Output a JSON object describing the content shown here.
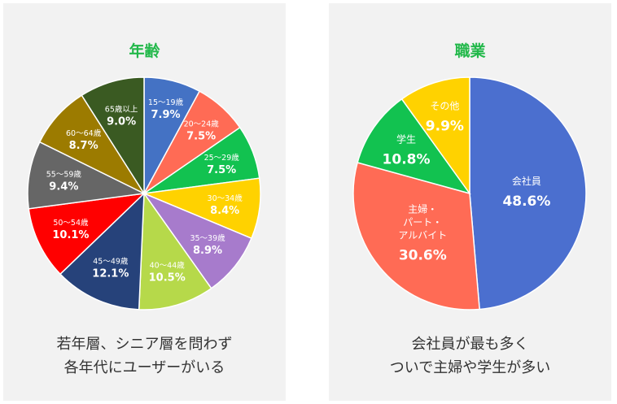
{
  "chart_data": [
    {
      "type": "pie",
      "title": "年齢",
      "categories": [
        "15～19歳",
        "20～24歳",
        "25～29歳",
        "30～34歳",
        "35～39歳",
        "40～44歳",
        "45～49歳",
        "50～54歳",
        "55～59歳",
        "60～64歳",
        "65歳以上"
      ],
      "values": [
        7.9,
        7.5,
        7.5,
        8.4,
        8.9,
        10.5,
        12.1,
        10.1,
        9.4,
        8.7,
        9.0
      ],
      "value_labels": [
        "7.9%",
        "7.5%",
        "7.5%",
        "8.4%",
        "8.9%",
        "10.5%",
        "12.1%",
        "10.1%",
        "9.4%",
        "8.7%",
        "9.0%"
      ],
      "colors": [
        "#4472c4",
        "#ff6b55",
        "#12c250",
        "#ffd200",
        "#a77bcc",
        "#b6d94a",
        "#26427a",
        "#ff0000",
        "#666666",
        "#9c7b00",
        "#3a5a22"
      ],
      "caption": [
        "若年層、シニア層を問わず",
        "各年代にユーザーがいる"
      ]
    },
    {
      "type": "pie",
      "title": "職業",
      "categories": [
        "会社員",
        "主婦・\nパート・\nアルバイト",
        "学生",
        "その他"
      ],
      "values": [
        48.6,
        30.6,
        10.8,
        9.9
      ],
      "value_labels": [
        "48.6%",
        "30.6%",
        "10.8%",
        "9.9%"
      ],
      "colors": [
        "#4b6fcf",
        "#ff6b55",
        "#12c250",
        "#ffd200"
      ],
      "caption": [
        "会社員が最も多く",
        "ついで主婦や学生が多い"
      ]
    }
  ]
}
